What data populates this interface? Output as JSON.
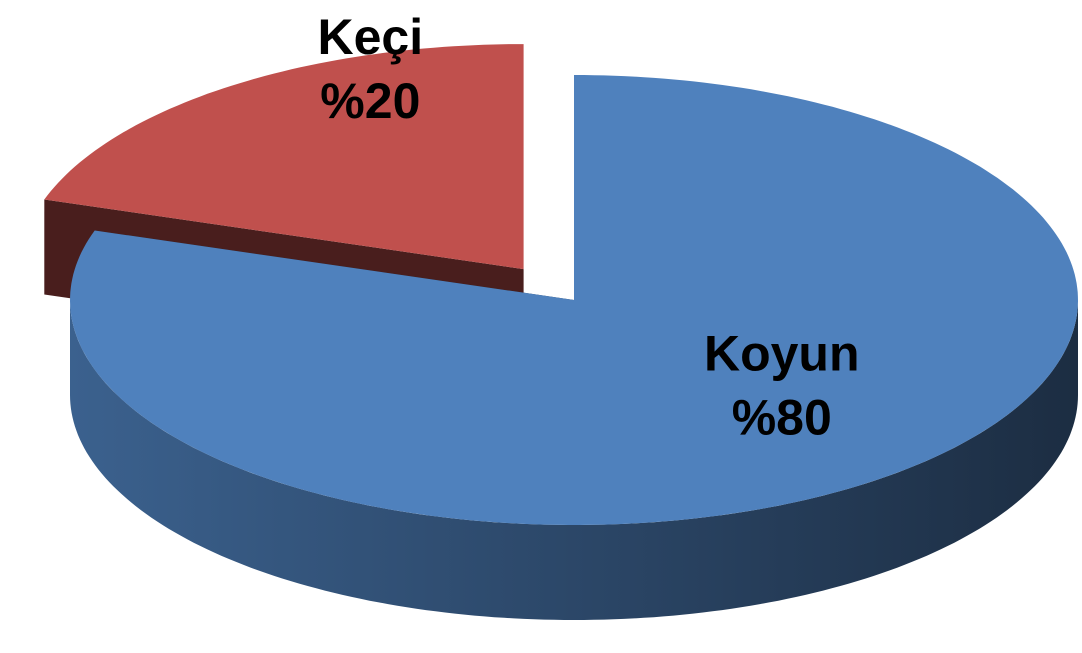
{
  "chart_data": {
    "type": "pie",
    "three_d": true,
    "categories": [
      "Keçi",
      "Koyun"
    ],
    "values": [
      20,
      80
    ],
    "value_labels": [
      "%20",
      "%80"
    ],
    "colors": [
      "#c0504d",
      "#4f81bd"
    ],
    "exploded": [
      true,
      false
    ]
  }
}
